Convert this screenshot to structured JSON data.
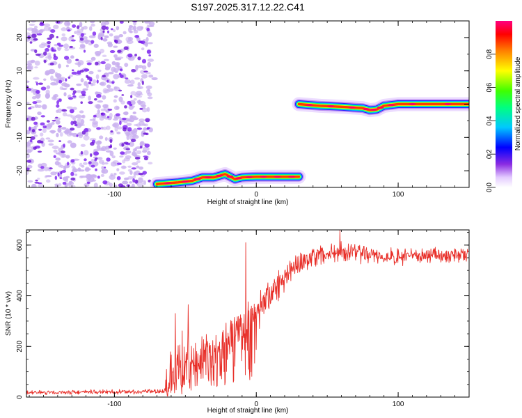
{
  "title": "S197.2025.317.12.22.C41",
  "colors": {
    "snr_line": "#e8302a",
    "frame": "#000000",
    "scatter_light": "#c9b0ef",
    "scatter_dark": "#6a12d6"
  },
  "chart_data": [
    {
      "type": "heatmap",
      "name": "spectrogram",
      "xlabel": "Height of straight line (km)",
      "ylabel": "Frequency (Hz)",
      "xlim": [
        -162,
        150
      ],
      "ylim": [
        -25,
        25
      ],
      "x_ticks": [
        -100,
        0,
        100
      ],
      "y_ticks": [
        -20,
        -10,
        0,
        10,
        20
      ],
      "noise_region": {
        "x": [
          -162,
          -72
        ],
        "y": [
          -25,
          25
        ]
      },
      "tracks": [
        {
          "name": "lower-track",
          "points": [
            [
              -70,
              -24
            ],
            [
              -55,
              -23.5
            ],
            [
              -45,
              -23
            ],
            [
              -38,
              -22
            ],
            [
              -30,
              -22
            ],
            [
              -22,
              -21
            ],
            [
              -15,
              -22.5
            ],
            [
              -10,
              -22
            ],
            [
              0,
              -21.8
            ],
            [
              10,
              -21.8
            ],
            [
              20,
              -21.8
            ],
            [
              30,
              -21.8
            ]
          ]
        },
        {
          "name": "upper-track",
          "points": [
            [
              30,
              0
            ],
            [
              45,
              -0.5
            ],
            [
              60,
              -0.8
            ],
            [
              75,
              -1.2
            ],
            [
              80,
              -1.8
            ],
            [
              85,
              -1.6
            ],
            [
              90,
              -0.5
            ],
            [
              100,
              0
            ],
            [
              120,
              0
            ],
            [
              150,
              0
            ]
          ]
        }
      ],
      "colorbar": {
        "label": "Normalized spectral amplitude",
        "range": [
          0,
          1
        ],
        "ticks": [
          "0.0",
          "0.2",
          "0.4",
          "0.6",
          "0.8"
        ]
      }
    },
    {
      "type": "line",
      "name": "snr",
      "xlabel": "Height of straight line (km)",
      "ylabel": "SNR (10 * v/v)",
      "xlim": [
        -162,
        150
      ],
      "ylim": [
        0,
        660
      ],
      "x_ticks": [
        -100,
        0,
        100
      ],
      "y_ticks": [
        0,
        200,
        400,
        600
      ],
      "series": [
        {
          "name": "SNR",
          "envelope": [
            {
              "x": -162,
              "base": 18,
              "amp": 10
            },
            {
              "x": -65,
              "base": 22,
              "amp": 10
            },
            {
              "x": -62,
              "base": 60,
              "amp": 120
            },
            {
              "x": -50,
              "base": 140,
              "amp": 160
            },
            {
              "x": -40,
              "base": 160,
              "amp": 110
            },
            {
              "x": -30,
              "base": 200,
              "amp": 80
            },
            {
              "x": -20,
              "base": 240,
              "amp": 80
            },
            {
              "x": -10,
              "base": 270,
              "amp": 100
            },
            {
              "x": 0,
              "base": 350,
              "amp": 100
            },
            {
              "x": 10,
              "base": 400,
              "amp": 80
            },
            {
              "x": 20,
              "base": 470,
              "amp": 60
            },
            {
              "x": 30,
              "base": 530,
              "amp": 50
            },
            {
              "x": 45,
              "base": 560,
              "amp": 50
            },
            {
              "x": 60,
              "base": 575,
              "amp": 45
            },
            {
              "x": 80,
              "base": 560,
              "amp": 40
            },
            {
              "x": 100,
              "base": 550,
              "amp": 40
            },
            {
              "x": 120,
              "base": 560,
              "amp": 35
            },
            {
              "x": 150,
              "base": 560,
              "amp": 35
            }
          ],
          "spikes": [
            {
              "x": -7.5,
              "value": 610
            },
            {
              "x": -5.5,
              "value": 110
            },
            {
              "x": -48,
              "value": 365
            },
            {
              "x": -57,
              "value": 330
            },
            {
              "x": 59,
              "value": 660
            }
          ]
        }
      ]
    }
  ]
}
